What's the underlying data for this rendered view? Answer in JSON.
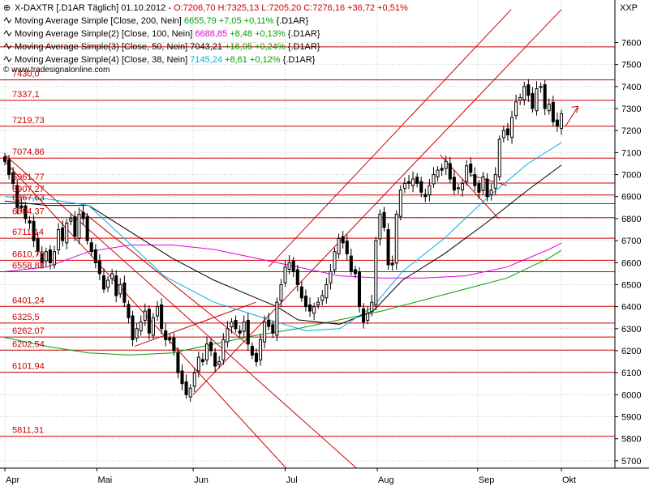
{
  "header": {
    "title_prefix": "X-DAXTR [.D1AR  Täglich] 01.10.2012 - ",
    "ohlc": "O:7206,70 H:7325,13 L:7205,20 C:7276,16 +36,72 +0,51%",
    "symbol_right": "XXP",
    "watermark": "© www.tradesignalonline.com"
  },
  "legend": [
    {
      "label": "Moving Average Simple [Close, 200, Nein]",
      "value": "6655,79",
      "change": "+7,05 +0,11%",
      "suffix": "{.D1AR}",
      "color": "#00a000"
    },
    {
      "label": "Moving Average Simple(2) [Close, 100, Nein]",
      "value": "6688,85",
      "change": "+8,48 +0,13%",
      "suffix": "{.D1AR}",
      "color": "#e000e0"
    },
    {
      "label": "Moving Average Simple(3) [Close, 50, Nein]",
      "value": "7043,21",
      "change": "+16,95 +0,24%",
      "suffix": "{.D1AR}",
      "color": "#000000"
    },
    {
      "label": "Moving Average Simple(4) [Close, 38, Nein]",
      "value": "7145,24",
      "change": "+8,61 +0,12%",
      "suffix": "{.D1AR}",
      "color": "#00b0e0"
    }
  ],
  "chart_data": {
    "type": "candlestick",
    "title": "X-DAXTR [.D1AR  Täglich] 01.10.2012",
    "x_months": [
      {
        "label": "Apr",
        "day": 0
      },
      {
        "label": "Mai",
        "day": 22
      },
      {
        "label": "Jun",
        "day": 45
      },
      {
        "label": "Jul",
        "day": 67
      },
      {
        "label": "Aug",
        "day": 89
      },
      {
        "label": "Sep",
        "day": 113
      },
      {
        "label": "Okt",
        "day": 133
      }
    ],
    "ylim": [
      5650,
      7750
    ],
    "y_ticks": [
      5700,
      5800,
      5900,
      6000,
      6100,
      6200,
      6300,
      6400,
      6500,
      6600,
      6700,
      6800,
      6900,
      7000,
      7100,
      7200,
      7300,
      7400,
      7500,
      7600
    ],
    "grid": true,
    "horizontal_levels": [
      {
        "label": "7430,0",
        "value": 7430
      },
      {
        "label": "7337,1",
        "value": 7337.1
      },
      {
        "label": "7219,73",
        "value": 7219.73
      },
      {
        "label": "7074,86",
        "value": 7074.86
      },
      {
        "label": "6961,77",
        "value": 6961.77
      },
      {
        "label": "6907,27",
        "value": 6907.27
      },
      {
        "label": "6867,63",
        "value": 6867.63
      },
      {
        "label": "6804,37",
        "value": 6804.37
      },
      {
        "label": "6711,14",
        "value": 6711.14
      },
      {
        "label": "6610,79",
        "value": 6610.79
      },
      {
        "label": "6558,88",
        "value": 6558.88
      },
      {
        "label": "6401,24",
        "value": 6401.24
      },
      {
        "label": "6325,5",
        "value": 6325.5
      },
      {
        "label": "6262,07",
        "value": 6262.07
      },
      {
        "label": "6202,54",
        "value": 6202.54
      },
      {
        "label": "6101,94",
        "value": 6101.94
      },
      {
        "label": "5811,31",
        "value": 5811.31
      }
    ],
    "extra_level": 7580,
    "closes": [
      7060,
      7000,
      6960,
      6850,
      6850,
      6800,
      6780,
      6700,
      6650,
      6600,
      6650,
      6600,
      6650,
      6750,
      6700,
      6780,
      6800,
      6720,
      6820,
      6800,
      6700,
      6650,
      6600,
      6550,
      6480,
      6520,
      6550,
      6450,
      6500,
      6420,
      6350,
      6250,
      6300,
      6330,
      6380,
      6280,
      6350,
      6400,
      6300,
      6250,
      6250,
      6200,
      6100,
      6050,
      6000,
      6030,
      6100,
      6170,
      6150,
      6230,
      6200,
      6130,
      6150,
      6250,
      6300,
      6330,
      6300,
      6280,
      6330,
      6230,
      6180,
      6150,
      6250,
      6330,
      6310,
      6280,
      6420,
      6500,
      6580,
      6600,
      6560,
      6500,
      6440,
      6400,
      6380,
      6400,
      6420,
      6450,
      6500,
      6560,
      6650,
      6710,
      6690,
      6640,
      6560,
      6550,
      6400,
      6330,
      6370,
      6420,
      6700,
      6820,
      6760,
      6590,
      6590,
      6820,
      6930,
      6960,
      6960,
      6980,
      6960,
      6920,
      6900,
      6950,
      7000,
      7020,
      7020,
      7060,
      6980,
      6930,
      6940,
      6960,
      7040,
      7010,
      6950,
      6920,
      6990,
      6900,
      6930,
      7000,
      7160,
      7200,
      7180,
      7260,
      7330,
      7350,
      7400,
      7360,
      7300,
      7390,
      7400,
      7300,
      7320,
      7240,
      7220,
      7276
    ],
    "ma_series": [
      {
        "name": "Moving Average Simple [Close, 200, Nein]",
        "color": "#00a000",
        "points": [
          [
            0,
            6260
          ],
          [
            10,
            6220
          ],
          [
            20,
            6190
          ],
          [
            30,
            6180
          ],
          [
            40,
            6190
          ],
          [
            50,
            6230
          ],
          [
            60,
            6270
          ],
          [
            70,
            6300
          ],
          [
            80,
            6340
          ],
          [
            90,
            6380
          ],
          [
            100,
            6430
          ],
          [
            110,
            6480
          ],
          [
            120,
            6530
          ],
          [
            130,
            6620
          ],
          [
            133,
            6656
          ]
        ]
      },
      {
        "name": "Moving Average Simple(2) [Close, 100, Nein]",
        "color": "#e000e0",
        "points": [
          [
            0,
            6560
          ],
          [
            10,
            6580
          ],
          [
            20,
            6650
          ],
          [
            30,
            6680
          ],
          [
            40,
            6680
          ],
          [
            50,
            6660
          ],
          [
            60,
            6620
          ],
          [
            70,
            6580
          ],
          [
            80,
            6540
          ],
          [
            90,
            6530
          ],
          [
            100,
            6530
          ],
          [
            110,
            6540
          ],
          [
            120,
            6580
          ],
          [
            130,
            6660
          ],
          [
            133,
            6689
          ]
        ]
      },
      {
        "name": "Moving Average Simple(3) [Close, 50, Nein]",
        "color": "#000000",
        "points": [
          [
            0,
            6880
          ],
          [
            10,
            6860
          ],
          [
            20,
            6860
          ],
          [
            30,
            6740
          ],
          [
            40,
            6620
          ],
          [
            50,
            6520
          ],
          [
            60,
            6440
          ],
          [
            65,
            6400
          ],
          [
            70,
            6340
          ],
          [
            80,
            6320
          ],
          [
            88,
            6380
          ],
          [
            95,
            6520
          ],
          [
            105,
            6640
          ],
          [
            115,
            6780
          ],
          [
            125,
            6930
          ],
          [
            133,
            7043
          ]
        ]
      },
      {
        "name": "Moving Average Simple(4) [Close, 38, Nein]",
        "color": "#00b0e0",
        "points": [
          [
            0,
            6900
          ],
          [
            10,
            6890
          ],
          [
            20,
            6860
          ],
          [
            28,
            6720
          ],
          [
            38,
            6540
          ],
          [
            50,
            6420
          ],
          [
            60,
            6360
          ],
          [
            65,
            6330
          ],
          [
            72,
            6290
          ],
          [
            80,
            6300
          ],
          [
            88,
            6400
          ],
          [
            95,
            6560
          ],
          [
            105,
            6710
          ],
          [
            115,
            6890
          ],
          [
            125,
            7050
          ],
          [
            133,
            7145
          ]
        ]
      }
    ],
    "trendlines": [
      {
        "from": [
          0,
          7090
        ],
        "to": [
          85,
          5650
        ]
      },
      {
        "from": [
          0,
          7060
        ],
        "to": [
          68,
          5650
        ]
      },
      {
        "from": [
          45,
          6000
        ],
        "to": [
          133,
          7750
        ]
      },
      {
        "from": [
          63,
          6580
        ],
        "to": [
          121,
          7750
        ]
      },
      {
        "from": [
          18,
          6840
        ],
        "to": [
          58,
          6230
        ]
      },
      {
        "from": [
          31,
          6220
        ],
        "to": [
          60,
          6420
        ]
      },
      {
        "from": [
          104,
          7090
        ],
        "to": [
          118,
          6800
        ]
      },
      {
        "from": [
          111,
          7000
        ],
        "to": [
          120,
          6950
        ]
      },
      {
        "from": [
          134,
          7220
        ],
        "to": [
          137,
          7310
        ]
      }
    ]
  }
}
